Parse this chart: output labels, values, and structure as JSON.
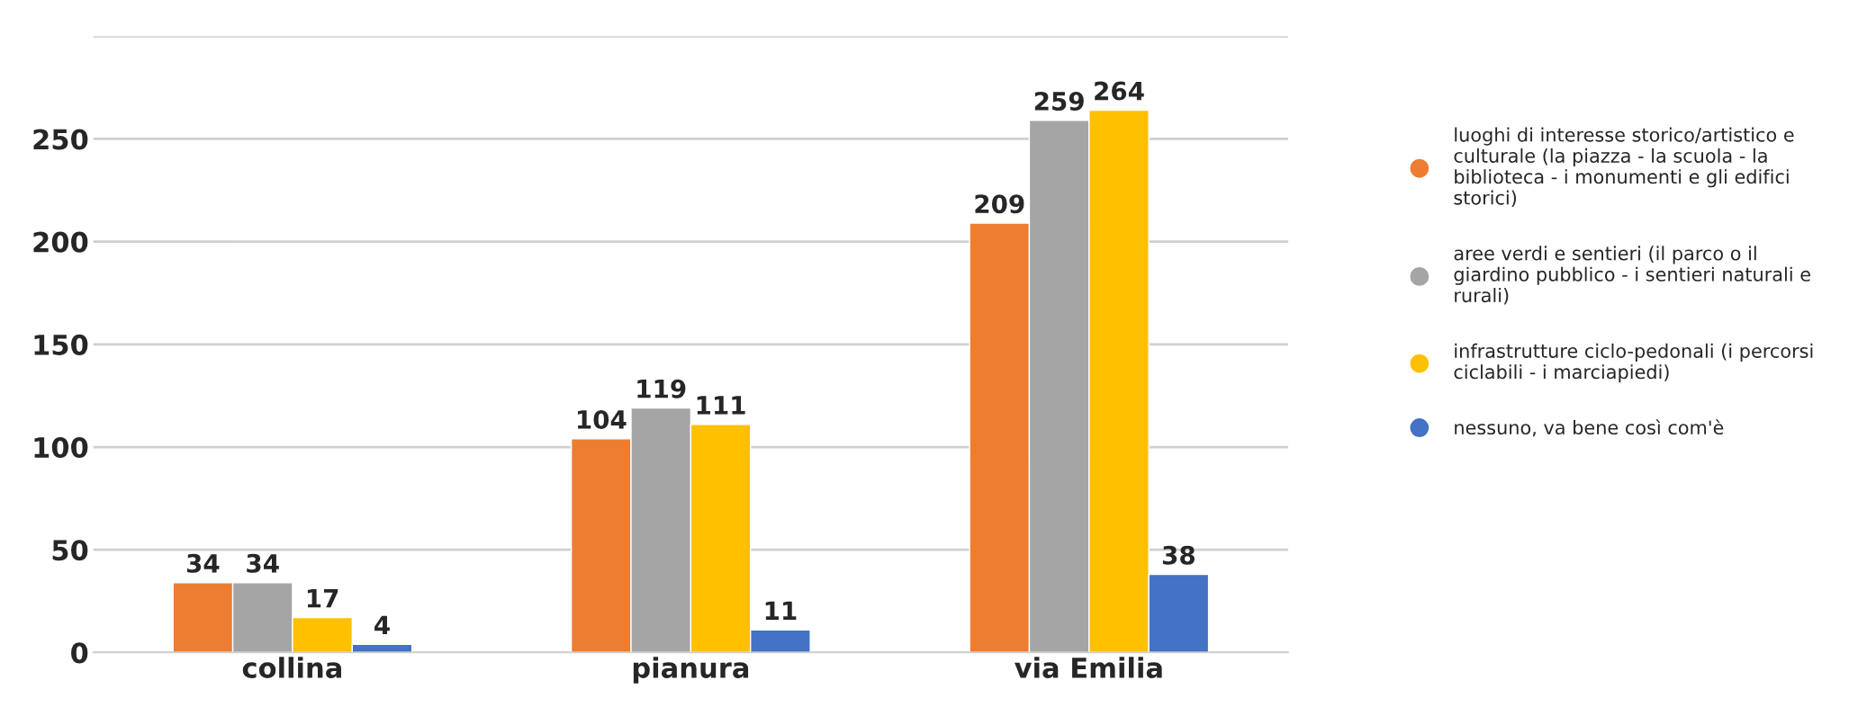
{
  "chart_data": {
    "type": "bar",
    "categories": [
      "collina",
      "pianura",
      "via Emilia"
    ],
    "series": [
      {
        "name": "luoghi di interesse storico/artistico e culturale (la piazza - la scuola - la biblioteca - i monumenti e gli edifici storici)",
        "color": "#ed7d31",
        "values": [
          34,
          104,
          209
        ]
      },
      {
        "name": "aree verdi e sentieri (il parco o il giardino pubblico - i sentieri naturali e rurali)",
        "color": "#a5a5a5",
        "values": [
          34,
          119,
          259
        ]
      },
      {
        "name": "infrastrutture ciclo-pedonali (i percorsi ciclabili - i marciapiedi)",
        "color": "#ffc000",
        "values": [
          17,
          111,
          264
        ]
      },
      {
        "name": "nessuno, va bene così com'è",
        "color": "#4472c4",
        "values": [
          4,
          11,
          38
        ]
      }
    ],
    "ylim": [
      0,
      300
    ],
    "yticks": [
      0,
      50,
      100,
      150,
      200,
      250,
      {
        "value": 300,
        "label": null
      }
    ],
    "grid": "y",
    "legend": "right",
    "data_labels": true
  }
}
